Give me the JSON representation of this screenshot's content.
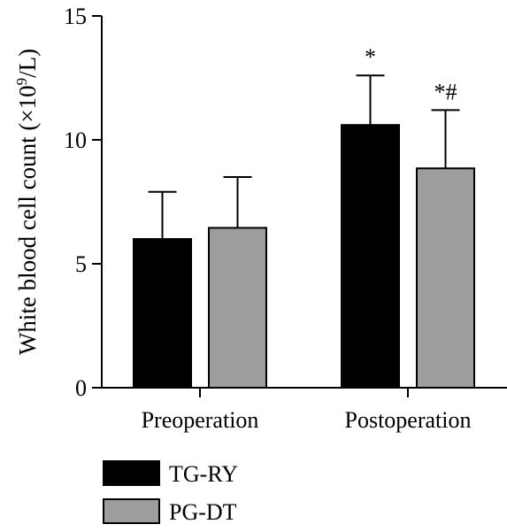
{
  "chart_data": {
    "type": "bar",
    "title": "",
    "xlabel": "",
    "ylabel": {
      "prefix": "White blood cell count (×10",
      "superscript": "9",
      "suffix": "/L)"
    },
    "ylim": [
      0,
      15
    ],
    "yticks": [
      "0",
      "5",
      "10",
      "15"
    ],
    "categories": [
      "Preoperation",
      "Postoperation"
    ],
    "series": [
      {
        "name": "TG-RY",
        "color": "#000000",
        "values": [
          6.0,
          10.6
        ],
        "errors": [
          1.9,
          2.0
        ],
        "annotations": [
          "",
          "*"
        ]
      },
      {
        "name": "PG-DT",
        "color": "#9d9d9f",
        "values": [
          6.45,
          8.85
        ],
        "errors": [
          2.05,
          2.35
        ],
        "annotations": [
          "",
          "*#"
        ]
      }
    ],
    "legend_position": "bottom-left",
    "grid": false
  }
}
